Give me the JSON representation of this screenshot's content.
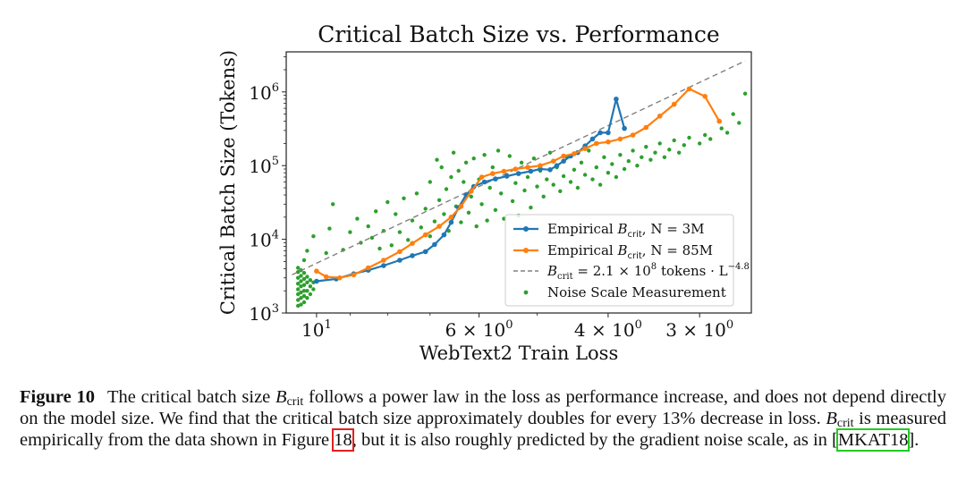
{
  "chart_data": {
    "type": "scatter",
    "title": "Critical Batch Size vs. Performance",
    "xlabel": "WebText2 Train Loss",
    "ylabel": "Critical Batch Size (Tokens)",
    "xscale": "log-reversed",
    "yscale": "log",
    "xlim": [
      11.0,
      2.55
    ],
    "ylim": [
      1000,
      3500000
    ],
    "x_ticks": [
      {
        "value": 10,
        "base": "10",
        "exp": "1",
        "label": "10^1"
      },
      {
        "value": 6,
        "base": "6 × 10",
        "exp": "0",
        "label": "6 × 10^0"
      },
      {
        "value": 4,
        "base": "4 × 10",
        "exp": "0",
        "label": "4 × 10^0"
      },
      {
        "value": 3,
        "base": "3 × 10",
        "exp": "0",
        "label": "3 × 10^0"
      }
    ],
    "y_ticks": [
      {
        "value": 1000,
        "base": "10",
        "exp": "3",
        "label": "10^3"
      },
      {
        "value": 10000,
        "base": "10",
        "exp": "4",
        "label": "10^4"
      },
      {
        "value": 100000,
        "base": "10",
        "exp": "5",
        "label": "10^5"
      },
      {
        "value": 1000000,
        "base": "10",
        "exp": "6",
        "label": "10^6"
      }
    ],
    "series": [
      {
        "name": "Empirical B_crit, N = 3M",
        "legend": {
          "pre": "Empirical ",
          "var": "B",
          "sub": "crit",
          "post": ", N = 3M"
        },
        "kind": "line-markers",
        "color": "#1f77b4",
        "points": [
          [
            10.0,
            2700
          ],
          [
            9.4,
            2900
          ],
          [
            8.9,
            3400
          ],
          [
            8.5,
            3800
          ],
          [
            8.1,
            4400
          ],
          [
            7.7,
            5200
          ],
          [
            7.4,
            6000
          ],
          [
            7.1,
            6800
          ],
          [
            6.9,
            8500
          ],
          [
            6.7,
            11500
          ],
          [
            6.55,
            17000
          ],
          [
            6.4,
            27000
          ],
          [
            6.25,
            40000
          ],
          [
            6.1,
            52000
          ],
          [
            5.9,
            60000
          ],
          [
            5.7,
            66000
          ],
          [
            5.5,
            72000
          ],
          [
            5.3,
            78000
          ],
          [
            5.1,
            84000
          ],
          [
            4.95,
            90000
          ],
          [
            4.8,
            88000
          ],
          [
            4.7,
            100000
          ],
          [
            4.6,
            115000
          ],
          [
            4.5,
            135000
          ],
          [
            4.4,
            150000
          ],
          [
            4.3,
            185000
          ],
          [
            4.2,
            230000
          ],
          [
            4.1,
            280000
          ],
          [
            4.0,
            280000
          ],
          [
            3.9,
            800000
          ],
          [
            3.8,
            320000
          ]
        ]
      },
      {
        "name": "Empirical B_crit, N = 85M",
        "legend": {
          "pre": "Empirical ",
          "var": "B",
          "sub": "crit",
          "post": ", N = 85M"
        },
        "kind": "line-markers",
        "color": "#ff7f0e",
        "points": [
          [
            10.0,
            3700
          ],
          [
            9.7,
            3100
          ],
          [
            9.3,
            3000
          ],
          [
            8.9,
            3300
          ],
          [
            8.5,
            4100
          ],
          [
            8.1,
            5200
          ],
          [
            7.7,
            6800
          ],
          [
            7.4,
            8800
          ],
          [
            7.1,
            11500
          ],
          [
            6.8,
            15000
          ],
          [
            6.55,
            20000
          ],
          [
            6.35,
            28000
          ],
          [
            6.15,
            45000
          ],
          [
            5.95,
            70000
          ],
          [
            5.75,
            78000
          ],
          [
            5.55,
            84000
          ],
          [
            5.35,
            90000
          ],
          [
            5.15,
            95000
          ],
          [
            4.95,
            100000
          ],
          [
            4.75,
            115000
          ],
          [
            4.6,
            135000
          ],
          [
            4.45,
            145000
          ],
          [
            4.3,
            170000
          ],
          [
            4.15,
            200000
          ],
          [
            4.0,
            210000
          ],
          [
            3.85,
            230000
          ],
          [
            3.7,
            260000
          ],
          [
            3.55,
            330000
          ],
          [
            3.4,
            470000
          ],
          [
            3.25,
            680000
          ],
          [
            3.1,
            1100000
          ],
          [
            2.95,
            870000
          ],
          [
            2.82,
            400000
          ]
        ]
      },
      {
        "name": "B_crit = 2.1 × 10^8 tokens · L^-4.8",
        "legend": {
          "var": "B",
          "sub": "crit",
          "mid": " = 2.1 × 10",
          "exp1": "8",
          "post": " tokens · L",
          "exp2": "−4.8"
        },
        "kind": "dashed-line",
        "color": "#808080",
        "points": [
          [
            10.8,
            3300
          ],
          [
            2.6,
            2640000
          ]
        ]
      },
      {
        "name": "Noise Scale Measurement",
        "legend": {
          "text": "Noise Scale Measurement"
        },
        "kind": "dots",
        "color": "#2ca02c",
        "points": [
          [
            10.6,
            1250
          ],
          [
            10.6,
            1500
          ],
          [
            10.6,
            1800
          ],
          [
            10.6,
            2100
          ],
          [
            10.6,
            2500
          ],
          [
            10.6,
            3000
          ],
          [
            10.6,
            3600
          ],
          [
            10.6,
            4100
          ],
          [
            10.5,
            1300
          ],
          [
            10.5,
            1600
          ],
          [
            10.5,
            1900
          ],
          [
            10.5,
            2300
          ],
          [
            10.5,
            2700
          ],
          [
            10.5,
            3200
          ],
          [
            10.5,
            3800
          ],
          [
            10.4,
            1400
          ],
          [
            10.4,
            1700
          ],
          [
            10.4,
            2000
          ],
          [
            10.4,
            2400
          ],
          [
            10.4,
            2900
          ],
          [
            10.4,
            3500
          ],
          [
            10.3,
            1600
          ],
          [
            10.3,
            2000
          ],
          [
            10.3,
            2600
          ],
          [
            10.3,
            3100
          ],
          [
            10.2,
            1800
          ],
          [
            10.2,
            2300
          ],
          [
            10.2,
            2800
          ],
          [
            10.1,
            2100
          ],
          [
            10.1,
            2600
          ],
          [
            10.4,
            5200
          ],
          [
            10.3,
            7000
          ],
          [
            10.1,
            11000
          ],
          [
            9.6,
            14000
          ],
          [
            9.7,
            6500
          ],
          [
            9.5,
            30000
          ],
          [
            9.2,
            7200
          ],
          [
            9.0,
            12500
          ],
          [
            8.8,
            19000
          ],
          [
            8.7,
            9000
          ],
          [
            8.5,
            15000
          ],
          [
            8.4,
            10500
          ],
          [
            8.3,
            24000
          ],
          [
            8.2,
            7500
          ],
          [
            8.1,
            13000
          ],
          [
            8.0,
            32000
          ],
          [
            7.9,
            8300
          ],
          [
            7.8,
            22000
          ],
          [
            7.7,
            12500
          ],
          [
            7.6,
            36000
          ],
          [
            7.5,
            9800
          ],
          [
            7.4,
            18000
          ],
          [
            7.3,
            42000
          ],
          [
            7.2,
            14500
          ],
          [
            7.1,
            26000
          ],
          [
            7.0,
            60000
          ],
          [
            7.0,
            11000
          ],
          [
            6.9,
            17500
          ],
          [
            6.85,
            120000
          ],
          [
            6.8,
            34000
          ],
          [
            6.75,
            95000
          ],
          [
            6.7,
            22000
          ],
          [
            6.65,
            48000
          ],
          [
            6.6,
            13000
          ],
          [
            6.55,
            70000
          ],
          [
            6.5,
            150000
          ],
          [
            6.45,
            28000
          ],
          [
            6.4,
            85000
          ],
          [
            6.35,
            17000
          ],
          [
            6.3,
            60000
          ],
          [
            6.25,
            110000
          ],
          [
            6.2,
            23000
          ],
          [
            6.15,
            38000
          ],
          [
            6.1,
            125000
          ],
          [
            6.05,
            15000
          ],
          [
            6.0,
            65000
          ],
          [
            5.95,
            30000
          ],
          [
            5.9,
            140000
          ],
          [
            5.85,
            18000
          ],
          [
            5.8,
            50000
          ],
          [
            5.75,
            95000
          ],
          [
            5.7,
            25000
          ],
          [
            5.65,
            160000
          ],
          [
            5.6,
            42000
          ],
          [
            5.55,
            19000
          ],
          [
            5.5,
            75000
          ],
          [
            5.45,
            135000
          ],
          [
            5.4,
            33000
          ],
          [
            5.35,
            58000
          ],
          [
            5.3,
            21000
          ],
          [
            5.25,
            110000
          ],
          [
            5.2,
            46000
          ],
          [
            5.15,
            70000
          ],
          [
            5.1,
            27000
          ],
          [
            5.05,
            125000
          ],
          [
            5.0,
            52000
          ],
          [
            4.95,
            85000
          ],
          [
            4.9,
            38000
          ],
          [
            4.85,
            65000
          ],
          [
            4.8,
            150000
          ],
          [
            4.75,
            55000
          ],
          [
            4.7,
            95000
          ],
          [
            4.65,
            45000
          ],
          [
            4.6,
            72000
          ],
          [
            4.55,
            130000
          ],
          [
            4.5,
            60000
          ],
          [
            4.45,
            88000
          ],
          [
            4.4,
            50000
          ],
          [
            4.35,
            110000
          ],
          [
            4.3,
            75000
          ],
          [
            4.25,
            160000
          ],
          [
            4.2,
            65000
          ],
          [
            4.15,
            95000
          ],
          [
            4.1,
            55000
          ],
          [
            4.05,
            130000
          ],
          [
            4.0,
            80000
          ],
          [
            3.95,
            105000
          ],
          [
            3.9,
            70000
          ],
          [
            3.85,
            140000
          ],
          [
            3.8,
            90000
          ],
          [
            3.75,
            115000
          ],
          [
            3.7,
            160000
          ],
          [
            3.65,
            100000
          ],
          [
            3.6,
            130000
          ],
          [
            3.55,
            180000
          ],
          [
            3.5,
            120000
          ],
          [
            3.45,
            150000
          ],
          [
            3.4,
            200000
          ],
          [
            3.35,
            130000
          ],
          [
            3.3,
            165000
          ],
          [
            3.25,
            220000
          ],
          [
            3.2,
            150000
          ],
          [
            3.15,
            190000
          ],
          [
            3.1,
            240000
          ],
          [
            3.0,
            200000
          ],
          [
            2.95,
            260000
          ],
          [
            2.9,
            230000
          ],
          [
            2.8,
            320000
          ],
          [
            2.75,
            280000
          ],
          [
            2.7,
            500000
          ],
          [
            2.65,
            380000
          ],
          [
            2.6,
            950000
          ]
        ]
      }
    ]
  },
  "caption": {
    "label": "Figure 10",
    "text_1": "The critical batch size ",
    "var_1": "B",
    "sub_1": "crit",
    "text_2": " follows a power law in the loss as performance increase, and does not depend directly on the model size. We find that the critical batch size approximately doubles for every ",
    "percent": "13%",
    "text_3": " decrease in loss. ",
    "var_2": "B",
    "sub_2": "crit",
    "text_4": " is measured empirically from the data shown in Figure ",
    "ref_1": "18",
    "text_5": ", but it is also roughly predicted by the gradient noise scale, as in [",
    "ref_2": "MKAT18",
    "text_6": "]."
  }
}
